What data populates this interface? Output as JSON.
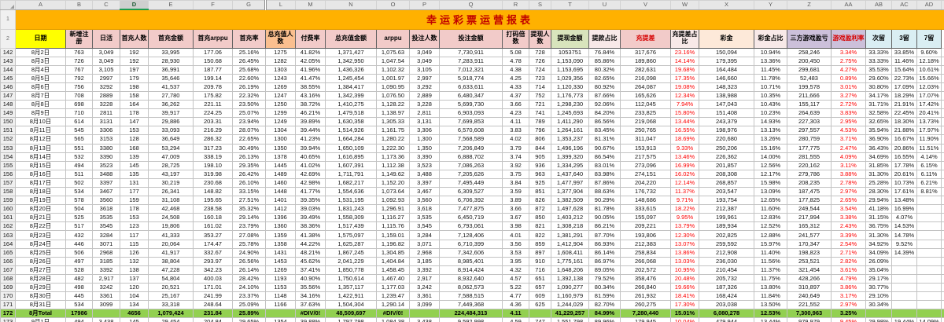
{
  "title": "幸运彩票运营报表",
  "column_letters": [
    "A",
    "B",
    "C",
    "D",
    "E",
    "F",
    "G",
    "L",
    "M",
    "N",
    "O",
    "P",
    "Q",
    "R",
    "S",
    "T",
    "U",
    "V",
    "W",
    "X",
    "Y",
    "Z",
    "AA",
    "AB",
    "AC",
    "AD"
  ],
  "selected_column_letter": "D",
  "hidden_columns_after": "G",
  "corner_row_numbers": [
    "1",
    "2"
  ],
  "headers": [
    "日期",
    "新增注册",
    "日活",
    "首充人数",
    "首充金额",
    "首充arppu",
    "首充率",
    "总充值人数",
    "付费率",
    "总充值金额",
    "arppu",
    "投注人数",
    "投注金额",
    "打码倍数",
    "提现人数",
    "提现金额",
    "提款占比",
    "充提差",
    "充提差占比",
    "彩金",
    "彩金占比",
    "三方游戏盈亏",
    "游戏盈利率",
    "次留",
    "3留",
    "7留"
  ],
  "header_styles": [
    "yellow",
    "pink",
    "pink",
    "pink",
    "pink",
    "pink",
    "pink",
    "orange",
    "pink",
    "pink",
    "pink",
    "pink",
    "pink",
    "pink",
    "pink",
    "green",
    "pinklight",
    "pinkred",
    "pinklight",
    "peach",
    "pinklight",
    "lav",
    "lavred",
    "blue",
    "blue",
    "blue"
  ],
  "red_value_columns": [
    18,
    22
  ],
  "rows": [
    {
      "num": "142",
      "cells": [
        "8月2日",
        "763",
        "3,049",
        "192",
        "33,995",
        "177.06",
        "25.16%",
        "1275",
        "41.82%",
        "1,371,427",
        "1,075.63",
        "3,049",
        "7,730,911",
        "5.08",
        "728",
        "1053751",
        "76.84%",
        "317,676",
        "23.16%",
        "150,094",
        "10.94%",
        "258,246",
        "3.34%",
        "33.33%",
        "33.85%",
        "9.60%"
      ]
    },
    {
      "num": "143",
      "cells": [
        "8月3日",
        "726",
        "3,049",
        "192",
        "28,930",
        "150.68",
        "26.45%",
        "1282",
        "42.05%",
        "1,342,950",
        "1,047.54",
        "3,049",
        "7,283,911",
        "4.78",
        "726",
        "1,153,090",
        "85.86%",
        "189,860",
        "14.14%",
        "179,395",
        "13.36%",
        "200,450",
        "2.75%",
        "33.33%",
        "11.46%",
        "12.18%"
      ]
    },
    {
      "num": "144",
      "cells": [
        "8月4日",
        "767",
        "3,105",
        "197",
        "36,991",
        "187.77",
        "25.68%",
        "1303",
        "41.96%",
        "1,436,326",
        "1,102.32",
        "3,105",
        "7,012,321",
        "4.38",
        "724",
        "1,153,695",
        "80.32%",
        "282,631",
        "19.68%",
        "164,484",
        "11.45%",
        "299,681",
        "4.27%",
        "35.53%",
        "15.64%",
        "10.61%"
      ]
    },
    {
      "num": "145",
      "cells": [
        "8月5日",
        "792",
        "2997",
        "179",
        "35,646",
        "199.14",
        "22.60%",
        "1243",
        "41.47%",
        "1,245,454",
        "1,001.97",
        "2,997",
        "5,918,774",
        "4.25",
        "723",
        "1,029,356",
        "82.65%",
        "216,098",
        "17.35%",
        "146,660",
        "11.78%",
        "52,483",
        "0.89%",
        "29.60%",
        "22.73%",
        "15.66%"
      ]
    },
    {
      "num": "146",
      "cells": [
        "8月6日",
        "756",
        "3292",
        "198",
        "41,537",
        "209.78",
        "26.19%",
        "1269",
        "38.55%",
        "1,384,417",
        "1,090.95",
        "3,292",
        "6,633,611",
        "4.33",
        "714",
        "1,120,330",
        "80.92%",
        "264,087",
        "19.08%",
        "148,323",
        "10.71%",
        "199,578",
        "3.01%",
        "30.80%",
        "17.09%",
        "12.03%"
      ]
    },
    {
      "num": "147",
      "cells": [
        "8月7日",
        "708",
        "2889",
        "158",
        "27,780",
        "175.82",
        "22.32%",
        "1247",
        "43.16%",
        "1,342,399",
        "1,076.50",
        "2,889",
        "6,480,347",
        "4.37",
        "752",
        "1,176,773",
        "87.66%",
        "165,626",
        "12.34%",
        "138,988",
        "10.35%",
        "211,666",
        "3.27%",
        "34.17%",
        "18.29%",
        "17.07%"
      ]
    },
    {
      "num": "148",
      "cells": [
        "8月8日",
        "698",
        "3228",
        "164",
        "36,262",
        "221.11",
        "23.50%",
        "1250",
        "38.72%",
        "1,410,275",
        "1,128.22",
        "3,228",
        "5,699,730",
        "3.66",
        "721",
        "1,298,230",
        "92.06%",
        "112,045",
        "7.94%",
        "147,043",
        "10.43%",
        "155,117",
        "2.72%",
        "31.71%",
        "21.91%",
        "17.42%"
      ]
    },
    {
      "num": "149",
      "cells": [
        "8月9日",
        "710",
        "2811",
        "178",
        "39,917",
        "224.25",
        "25.07%",
        "1299",
        "46.21%",
        "1,479,518",
        "1,138.97",
        "2,811",
        "6,903,093",
        "4.23",
        "741",
        "1,245,693",
        "84.20%",
        "233,825",
        "15.80%",
        "151,408",
        "10.23%",
        "264,639",
        "3.83%",
        "32.58%",
        "22.45%",
        "20.41%"
      ]
    },
    {
      "num": "150",
      "cells": [
        "8月10日",
        "614",
        "3131",
        "147",
        "29,886",
        "203.31",
        "23.94%",
        "1249",
        "39.89%",
        "1,630,358",
        "1,305.33",
        "3,131",
        "7,699,853",
        "4.11",
        "789",
        "1,411,290",
        "86.56%",
        "219,068",
        "13.44%",
        "243,379",
        "14.93%",
        "227,303",
        "2.95%",
        "32.65%",
        "18.30%",
        "13.73%"
      ]
    },
    {
      "num": "151",
      "cells": [
        "8月11日",
        "545",
        "3306",
        "153",
        "33,093",
        "216.29",
        "28.07%",
        "1304",
        "39.44%",
        "1,514,926",
        "1,161.75",
        "3,306",
        "6,570,608",
        "3.83",
        "796",
        "1,264,161",
        "83.45%",
        "250,765",
        "16.55%",
        "198,976",
        "13.13%",
        "297,557",
        "4.53%",
        "35.94%",
        "21.88%",
        "17.97%"
      ]
    },
    {
      "num": "152",
      "cells": [
        "8月12日",
        "565",
        "3153",
        "128",
        "36,649",
        "286.32",
        "22.65%",
        "1300",
        "41.23%",
        "1,664,284",
        "1,280.22",
        "1,300",
        "7,568,589",
        "4.02",
        "806",
        "1,353,237",
        "81.31%",
        "311,047",
        "18.69%",
        "220,680",
        "13.26%",
        "280,759",
        "3.71%",
        "36.90%",
        "16.67%",
        "11.90%"
      ]
    },
    {
      "num": "153",
      "cells": [
        "8月13日",
        "551",
        "3380",
        "168",
        "53,294",
        "317.23",
        "30.49%",
        "1350",
        "39.94%",
        "1,650,109",
        "1,222.30",
        "1,350",
        "7,206,849",
        "3.79",
        "844",
        "1,496,196",
        "90.67%",
        "153,913",
        "9.33%",
        "250,206",
        "15.16%",
        "177,775",
        "2.47%",
        "36.43%",
        "20.86%",
        "11.51%"
      ]
    },
    {
      "num": "154",
      "cells": [
        "8月14日",
        "532",
        "3390",
        "139",
        "47,009",
        "338.19",
        "26.13%",
        "1378",
        "40.65%",
        "1,616,895",
        "1,173.36",
        "3,390",
        "6,888,702",
        "3.74",
        "905",
        "1,399,320",
        "86.54%",
        "217,575",
        "13.46%",
        "226,362",
        "14.00%",
        "281,555",
        "4.09%",
        "34.69%",
        "16.55%",
        "4.14%"
      ]
    },
    {
      "num": "155",
      "cells": [
        "8月15日",
        "494",
        "3523",
        "145",
        "28,725",
        "198.10",
        "29.35%",
        "1445",
        "41.02%",
        "1,607,391",
        "1,112.38",
        "3,523",
        "7,086,263",
        "3.92",
        "936",
        "1,334,295",
        "83.01%",
        "273,096",
        "16.99%",
        "201,857",
        "12.56%",
        "220,162",
        "3.11%",
        "31.85%",
        "17.78%",
        "6.15%"
      ]
    },
    {
      "num": "156",
      "cells": [
        "8月16日",
        "511",
        "3488",
        "135",
        "43,197",
        "319.98",
        "26.42%",
        "1489",
        "42.69%",
        "1,711,791",
        "1,149.62",
        "3,488",
        "7,205,626",
        "3.75",
        "963",
        "1,437,640",
        "83.98%",
        "274,151",
        "16.02%",
        "208,308",
        "12.17%",
        "279,786",
        "3.88%",
        "31.30%",
        "20.61%",
        "6.11%"
      ]
    },
    {
      "num": "157",
      "cells": [
        "8月17日",
        "502",
        "3397",
        "131",
        "30,219",
        "230.68",
        "26.10%",
        "1460",
        "42.98%",
        "1,682,217",
        "1,152.20",
        "3,397",
        "7,495,449",
        "3.84",
        "925",
        "1,477,997",
        "87.86%",
        "204,220",
        "12.14%",
        "268,857",
        "15.98%",
        "208,235",
        "2.78%",
        "25.28%",
        "10.73%",
        "6.21%"
      ]
    },
    {
      "num": "158",
      "cells": [
        "8月18日",
        "534",
        "3467",
        "177",
        "26,341",
        "148.82",
        "33.15%",
        "1448",
        "41.77%",
        "1,554,636",
        "1,073.64",
        "3,467",
        "6,309,527",
        "3.59",
        "851",
        "1,377,904",
        "88.63%",
        "176,732",
        "11.37%",
        "203,547",
        "13.09%",
        "187,475",
        "2.97%",
        "28.30%",
        "17.61%",
        "8.81%"
      ]
    },
    {
      "num": "159",
      "cells": [
        "8月19日",
        "578",
        "3560",
        "159",
        "31,108",
        "195.65",
        "27.51%",
        "1401",
        "39.35%",
        "1,531,195",
        "1,092.93",
        "3,560",
        "6,706,392",
        "3.89",
        "826",
        "1,382,509",
        "90.29%",
        "148,686",
        "9.71%",
        "193,754",
        "12.65%",
        "177,825",
        "2.65%",
        "29.94%",
        "13.48%",
        ""
      ]
    },
    {
      "num": "160",
      "cells": [
        "8月20日",
        "504",
        "3618",
        "178",
        "42,468",
        "238.58",
        "35.32%",
        "1412",
        "39.03%",
        "1,831,243",
        "1,296.91",
        "3,618",
        "7,477,875",
        "3.66",
        "872",
        "1,497,628",
        "81.78%",
        "333,615",
        "18.22%",
        "212,387",
        "11.60%",
        "249,544",
        "3.54%",
        "41.18%",
        "16.99%",
        ""
      ]
    },
    {
      "num": "161",
      "cells": [
        "8月21日",
        "525",
        "3535",
        "153",
        "24,508",
        "160.18",
        "29.14%",
        "1396",
        "39.49%",
        "1,558,309",
        "1,116.27",
        "3,535",
        "6,450,719",
        "3.67",
        "850",
        "1,403,212",
        "90.05%",
        "155,097",
        "9.95%",
        "199,961",
        "12.83%",
        "217,994",
        "3.38%",
        "31.15%",
        "4.07%",
        ""
      ]
    },
    {
      "num": "162",
      "cells": [
        "8月22日",
        "517",
        "3545",
        "123",
        "19,806",
        "161.02",
        "23.79%",
        "1360",
        "38.36%",
        "1,517,439",
        "1,115.76",
        "3,545",
        "6,793,061",
        "3.98",
        "821",
        "1,308,218",
        "86.21%",
        "209,221",
        "13.79%",
        "189,934",
        "12.52%",
        "165,312",
        "2.43%",
        "36.75%",
        "14.53%",
        ""
      ]
    },
    {
      "num": "163",
      "cells": [
        "8月23日",
        "432",
        "3284",
        "117",
        "41,333",
        "353.27",
        "27.08%",
        "1359",
        "41.38%",
        "1,575,097",
        "1,159.01",
        "3,284",
        "7,128,406",
        "4.01",
        "822",
        "1,381,291",
        "87.70%",
        "193,806",
        "12.30%",
        "202,825",
        "12.88%",
        "241,577",
        "3.39%",
        "31.30%",
        "14.78%",
        ""
      ]
    },
    {
      "num": "164",
      "cells": [
        "8月24日",
        "446",
        "3071",
        "115",
        "20,064",
        "174.47",
        "25.78%",
        "1358",
        "44.22%",
        "1,625,287",
        "1,196.82",
        "3,071",
        "6,710,399",
        "3.56",
        "859",
        "1,412,904",
        "86.93%",
        "212,383",
        "13.07%",
        "259,592",
        "15.97%",
        "170,347",
        "2.54%",
        "34.92%",
        "9.52%",
        ""
      ]
    },
    {
      "num": "165",
      "cells": [
        "8月25日",
        "506",
        "2968",
        "126",
        "41,917",
        "332.67",
        "24.90%",
        "1431",
        "48.21%",
        "1,867,245",
        "1,304.85",
        "2,968",
        "7,342,606",
        "3.53",
        "897",
        "1,608,411",
        "86.14%",
        "258,834",
        "13.86%",
        "212,908",
        "11.40%",
        "198,823",
        "2.71%",
        "34.09%",
        "14.39%",
        ""
      ]
    },
    {
      "num": "166",
      "cells": [
        "8月26日",
        "497",
        "3185",
        "132",
        "38,804",
        "293.97",
        "26.56%",
        "1453",
        "45.62%",
        "2,041,229",
        "1,404.84",
        "3,185",
        "8,985,401",
        "3.95",
        "910",
        "1,775,161",
        "86.97%",
        "266,068",
        "13.03%",
        "236,030",
        "11.56%",
        "253,521",
        "2.82%",
        "26.09%",
        "",
        ""
      ]
    },
    {
      "num": "167",
      "cells": [
        "8月27日",
        "528",
        "3392",
        "138",
        "47,228",
        "342.23",
        "26.14%",
        "1269",
        "37.41%",
        "1,850,778",
        "1,458.45",
        "3,392",
        "8,914,424",
        "4.32",
        "716",
        "1,648,206",
        "89.05%",
        "202,572",
        "10.95%",
        "210,454",
        "11.37%",
        "321,454",
        "3.61%",
        "35.04%",
        "",
        ""
      ]
    },
    {
      "num": "168",
      "cells": [
        "8月28日",
        "482",
        "2,917",
        "137",
        "54,804",
        "400.03",
        "28.42%",
        "1193",
        "40.90%",
        "1,750,614",
        "1,467.40",
        "2,917",
        "8,932,640",
        "4.57",
        "651",
        "1,392,138",
        "79.52%",
        "358,476",
        "20.48%",
        "205,732",
        "11.75%",
        "428,266",
        "4.79%",
        "29.17%",
        "",
        ""
      ]
    },
    {
      "num": "169",
      "cells": [
        "8月29日",
        "498",
        "3242",
        "120",
        "20,521",
        "171.01",
        "24.10%",
        "1153",
        "35.56%",
        "1,357,117",
        "1,177.03",
        "3,242",
        "8,062,573",
        "5.22",
        "657",
        "1,090,277",
        "80.34%",
        "266,840",
        "19.66%",
        "187,326",
        "13.80%",
        "310,897",
        "3.86%",
        "30.77%",
        "",
        ""
      ]
    },
    {
      "num": "170",
      "cells": [
        "8月30日",
        "445",
        "3361",
        "104",
        "25,167",
        "241.99",
        "23.37%",
        "1148",
        "34.16%",
        "1,422,911",
        "1,239.47",
        "3,361",
        "7,588,515",
        "4.77",
        "609",
        "1,160,979",
        "81.59%",
        "261,932",
        "18.41%",
        "168,424",
        "11.84%",
        "240,649",
        "3.17%",
        "29.10%",
        "",
        ""
      ]
    },
    {
      "num": "171",
      "cells": [
        "8月31日",
        "534",
        "3099",
        "134",
        "33,318",
        "248.64",
        "25.09%",
        "1166",
        "37.63%",
        "1,504,304",
        "1,290.14",
        "3,099",
        "7,449,368",
        "4.36",
        "625",
        "1,244,029",
        "82.70%",
        "260,275",
        "17.30%",
        "203,038",
        "13.50%",
        "221,552",
        "2.97%",
        "30.34%",
        "",
        ""
      ]
    }
  ],
  "total_row": {
    "num": "172",
    "cells": [
      "8月Total",
      "17986",
      "",
      "4656",
      "1,079,424",
      "231.84",
      "25.89%",
      "",
      "#DIV/0!",
      "48,509,697",
      "#DIV/0!",
      "",
      "224,484,313",
      "4.11",
      "",
      "41,229,257",
      "84.99%",
      "7,280,440",
      "15.01%",
      "6,080,278",
      "12.53%",
      "7,300,963",
      "3.25%",
      "",
      "",
      ""
    ]
  },
  "partial_row": {
    "num": "173",
    "cells": [
      "9月1日",
      "494",
      "3,438",
      "145",
      "29,454",
      "204.84",
      "29.65%",
      "1354",
      "39.88%",
      "1,797,798",
      "1,084.38",
      "3,438",
      "9,592,998",
      "4.59",
      "747",
      "1,551,798",
      "89.96%",
      "179,945",
      "10.04%",
      "479,944",
      "13.44%",
      "979,979",
      "9.45%",
      "29.98%",
      "19.44%",
      "14.09%"
    ]
  },
  "colors": {
    "title_bg": "#ffb100",
    "title_text": "#c00000",
    "header_pink": "#f2cbc9",
    "header_yellow": "#ffff00",
    "header_orange": "#fabf8f",
    "header_green": "#d8e4bc",
    "header_peach": "#fde9d9",
    "header_lavender": "#ccc0da",
    "header_blue": "#daeef3",
    "total_row_green": "#92d050",
    "negative_highlight_text": "#fe0000",
    "selected_column_underline": "#1e9c50"
  }
}
